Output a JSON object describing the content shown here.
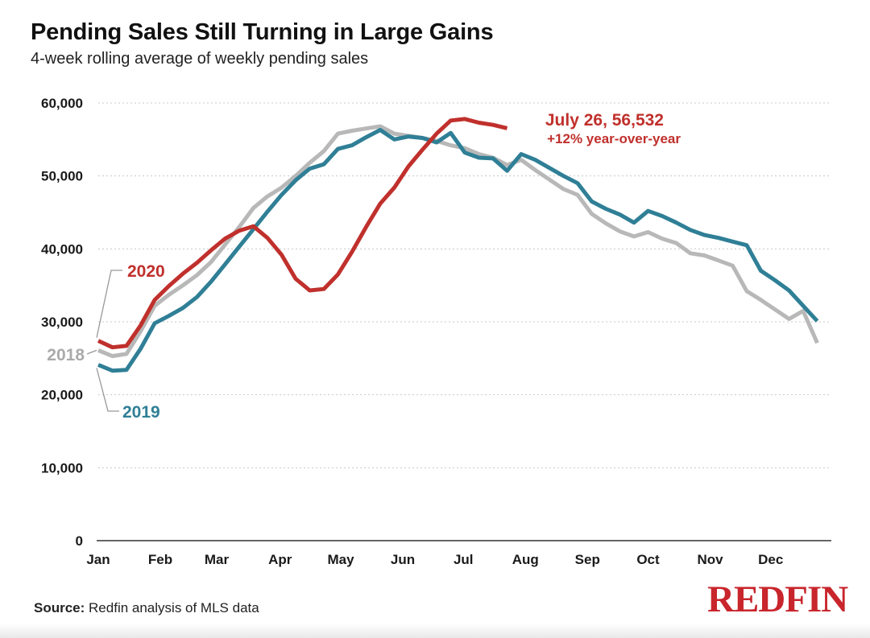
{
  "header": {
    "title": "Pending Sales Still Turning in Large Gains",
    "subtitle": "4-week rolling average of weekly pending sales"
  },
  "footer": {
    "source_label": "Source:",
    "source_text": "Redfin analysis of MLS data",
    "logo_text": "REDFIN"
  },
  "colors": {
    "series_2018": "#b8b8b8",
    "series_2019": "#2f7f96",
    "series_2020": "#c0302c",
    "grid": "#c8c8c8"
  },
  "chart_data": {
    "type": "line",
    "title": "Pending Sales Still Turning in Large Gains",
    "subtitle": "4-week rolling average of weekly pending sales",
    "xlabel": "",
    "ylabel": "",
    "ylim": [
      0,
      60000
    ],
    "xlim": [
      1,
      53
    ],
    "x_unit": "week",
    "yticks": [
      0,
      10000,
      20000,
      30000,
      40000,
      50000,
      60000
    ],
    "ytick_labels": [
      "0",
      "10,000",
      "20,000",
      "30,000",
      "40,000",
      "50,000",
      "60,000"
    ],
    "month_ticks": [
      {
        "label": "Jan",
        "week": 1
      },
      {
        "label": "Feb",
        "week": 5.4
      },
      {
        "label": "Mar",
        "week": 9.4
      },
      {
        "label": "Apr",
        "week": 13.9
      },
      {
        "label": "May",
        "week": 18.2
      },
      {
        "label": "Jun",
        "week": 22.6
      },
      {
        "label": "Jul",
        "week": 26.9
      },
      {
        "label": "Aug",
        "week": 31.3
      },
      {
        "label": "Sep",
        "week": 35.7
      },
      {
        "label": "Oct",
        "week": 40.0
      },
      {
        "label": "Nov",
        "week": 44.4
      },
      {
        "label": "Dec",
        "week": 48.7
      }
    ],
    "grid": "horizontal-dotted",
    "series": [
      {
        "name": "2018",
        "label": "2018",
        "values": [
          26100,
          25300,
          25600,
          28700,
          32200,
          33700,
          35000,
          36400,
          38200,
          40600,
          43000,
          45600,
          47200,
          48400,
          50000,
          51800,
          53400,
          55800,
          56200,
          56500,
          56800,
          55800,
          55500,
          55200,
          54800,
          54200,
          53800,
          53000,
          52500,
          51500,
          52200,
          50800,
          49500,
          48200,
          47400,
          44800,
          43500,
          42400,
          41700,
          42300,
          41400,
          40800,
          39400,
          39100,
          38400,
          37700,
          34200,
          33000,
          31700,
          30400,
          31500,
          27100
        ]
      },
      {
        "name": "2019",
        "label": "2019",
        "values": [
          24100,
          23300,
          23400,
          26300,
          29800,
          30800,
          31900,
          33400,
          35500,
          37900,
          40300,
          42700,
          45100,
          47400,
          49400,
          51000,
          51600,
          53700,
          54200,
          55300,
          56300,
          55000,
          55400,
          55200,
          54600,
          55900,
          53200,
          52500,
          52400,
          50700,
          53000,
          52200,
          51100,
          50000,
          49000,
          46500,
          45500,
          44700,
          43600,
          45200,
          44500,
          43600,
          42600,
          41900,
          41500,
          41000,
          40500,
          37000,
          35700,
          34300,
          32200,
          30100
        ]
      },
      {
        "name": "2020",
        "label": "2020",
        "values": [
          27400,
          26500,
          26700,
          29500,
          33000,
          34900,
          36600,
          38100,
          39800,
          41400,
          42500,
          43100,
          41500,
          39200,
          35900,
          34300,
          34500,
          36500,
          39600,
          43000,
          46200,
          48400,
          51300,
          53600,
          55800,
          57600,
          57800,
          57300,
          57000,
          56532
        ]
      }
    ],
    "annotations": [
      {
        "series": "2020",
        "line1": "July 26, 56,532",
        "line2": "+12% year-over-year"
      }
    ]
  }
}
